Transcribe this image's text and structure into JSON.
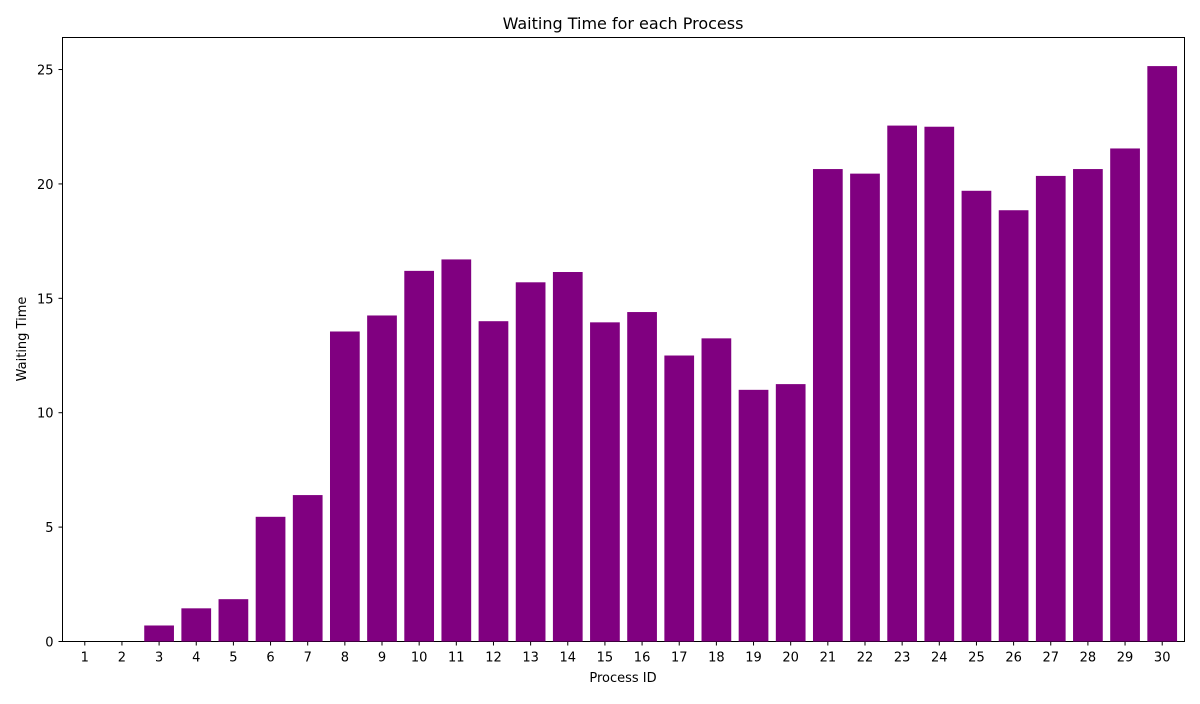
{
  "chart_data": {
    "type": "bar",
    "title": "Waiting Time for each Process",
    "xlabel": "Process ID",
    "ylabel": "Waiting Time",
    "categories": [
      "1",
      "2",
      "3",
      "4",
      "5",
      "6",
      "7",
      "8",
      "9",
      "10",
      "11",
      "12",
      "13",
      "14",
      "15",
      "16",
      "17",
      "18",
      "19",
      "20",
      "21",
      "22",
      "23",
      "24",
      "25",
      "26",
      "27",
      "28",
      "29",
      "30"
    ],
    "values": [
      0,
      0,
      0.7,
      1.45,
      1.85,
      5.45,
      6.4,
      13.55,
      14.25,
      16.2,
      16.7,
      14.0,
      15.7,
      16.15,
      13.95,
      14.4,
      12.5,
      13.25,
      11.0,
      11.25,
      20.65,
      20.45,
      22.55,
      22.5,
      19.7,
      18.85,
      20.35,
      20.65,
      21.55,
      25.15
    ],
    "ylim": [
      0,
      26.4
    ],
    "yticks": [
      0,
      5,
      10,
      15,
      20,
      25
    ],
    "bar_color": "#800080",
    "grid": false,
    "legend": "none"
  }
}
